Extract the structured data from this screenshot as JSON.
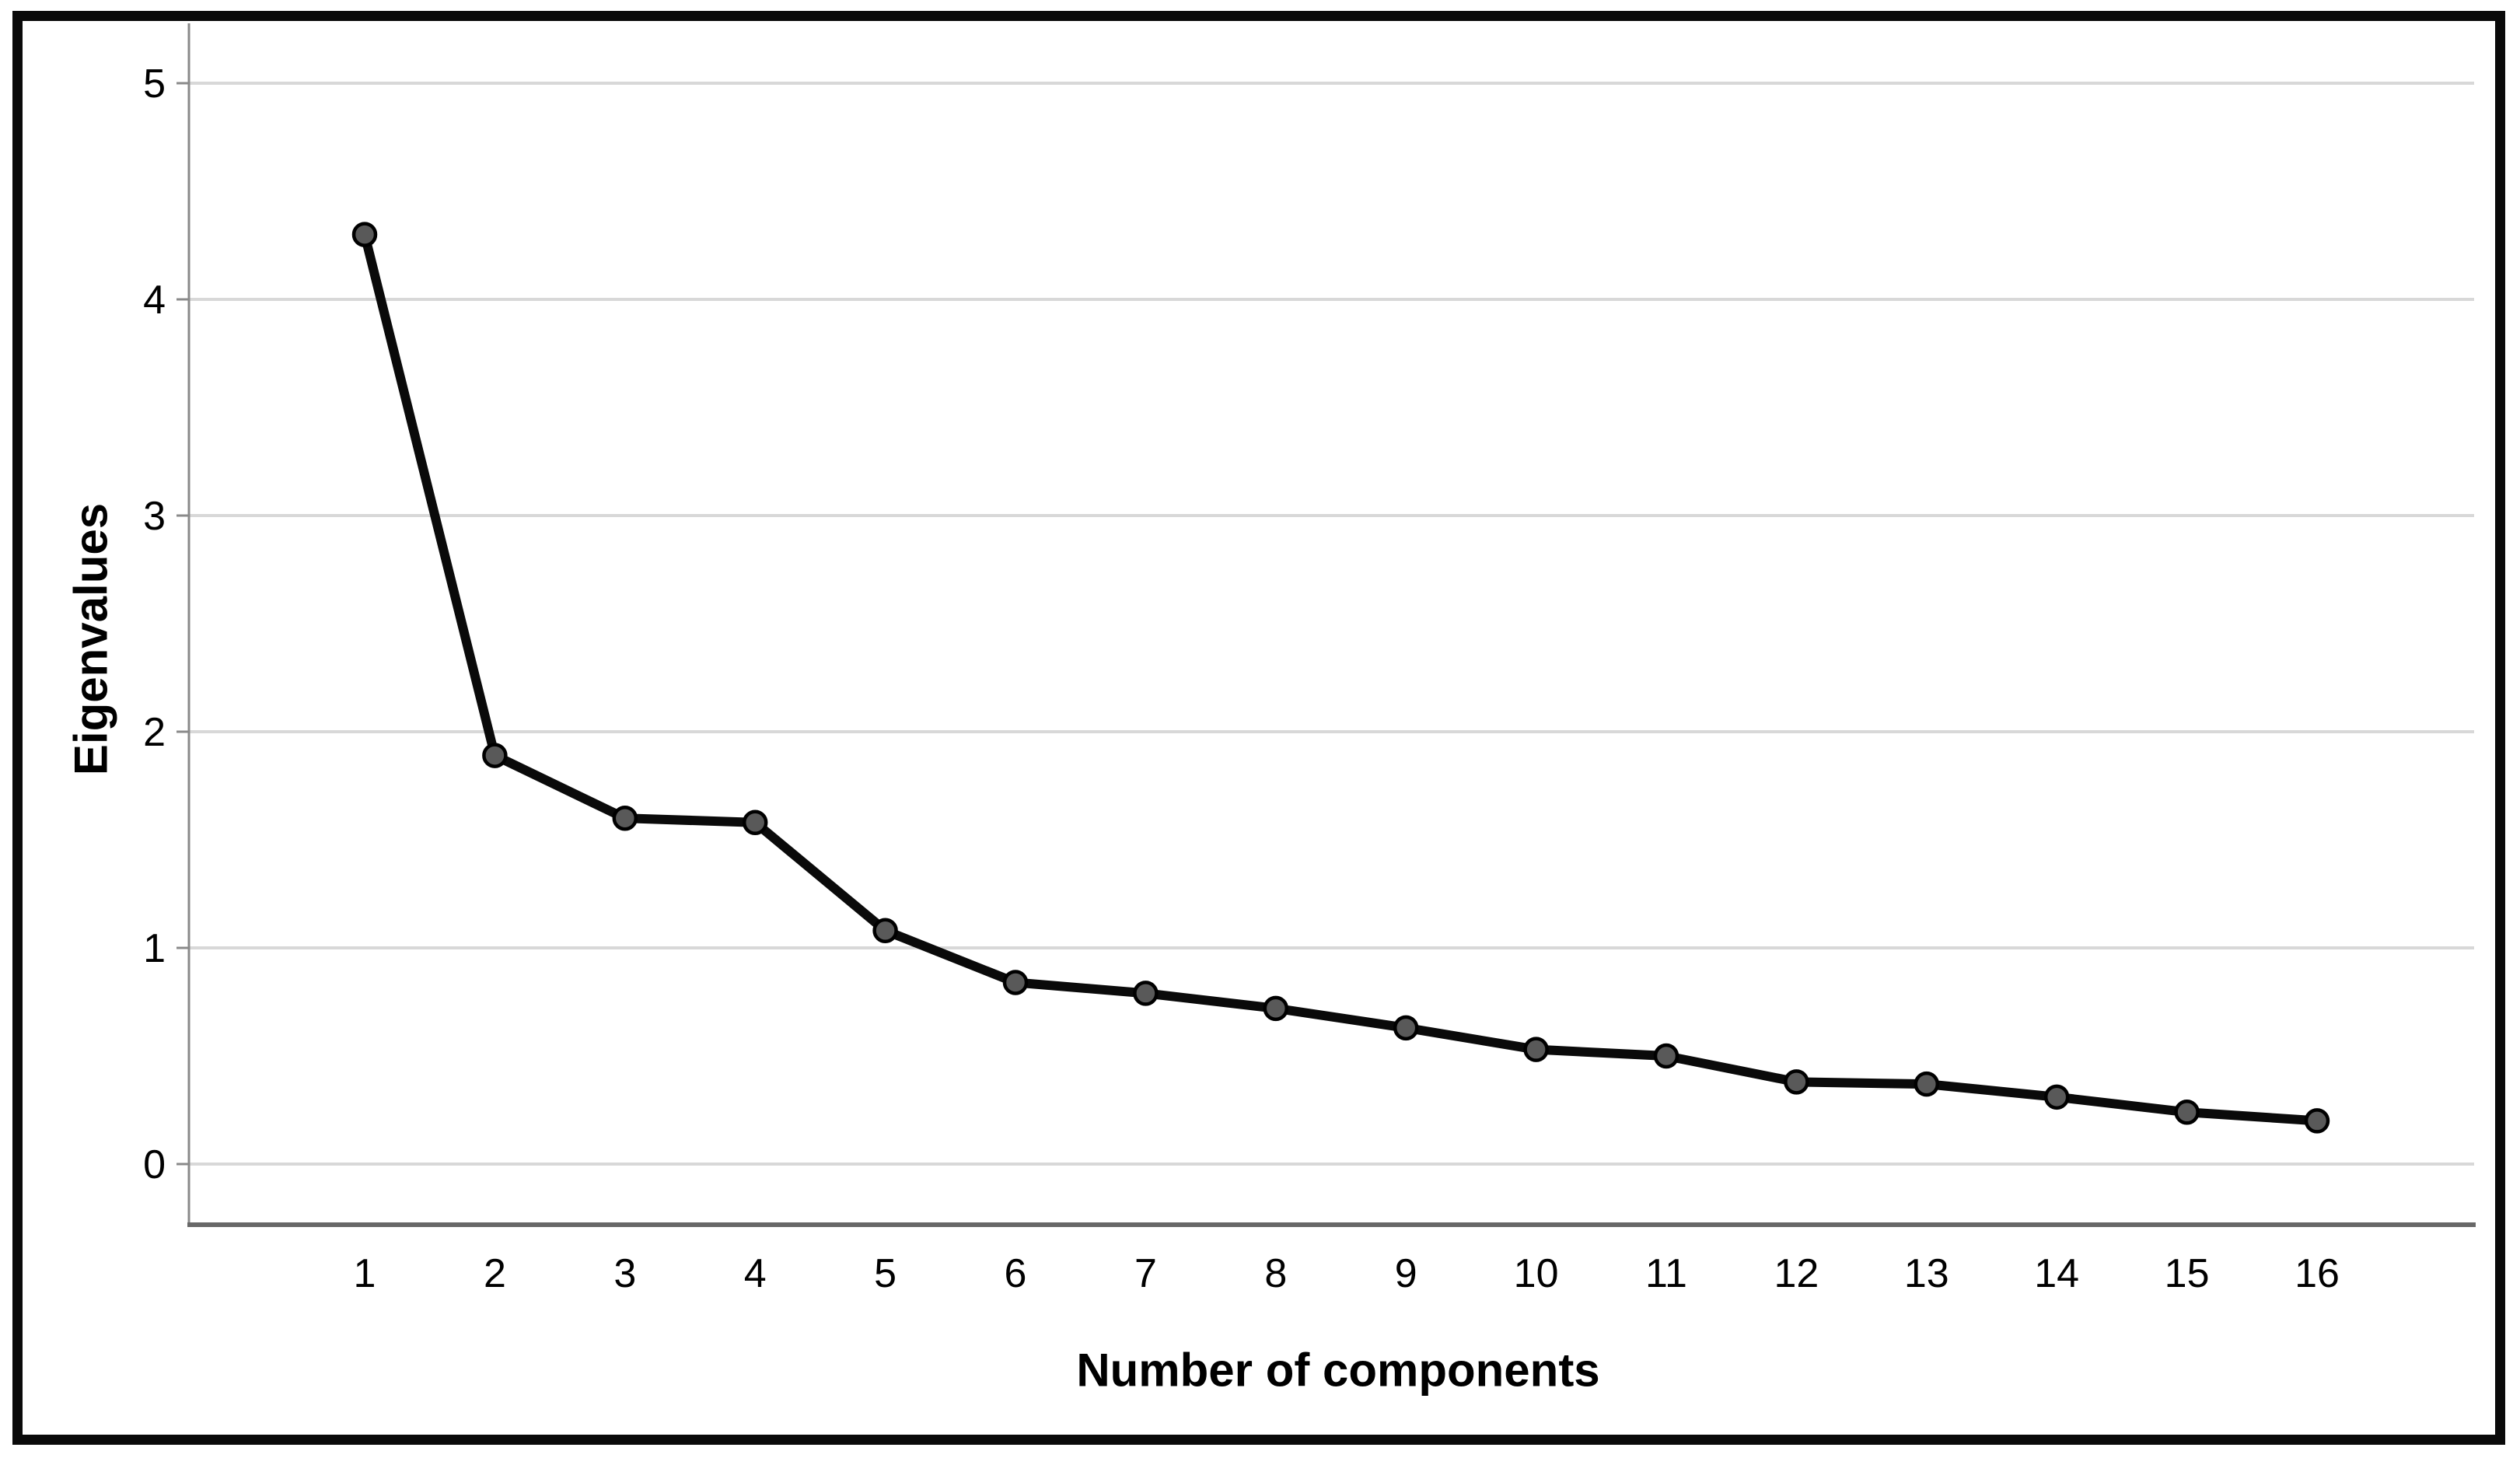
{
  "chart_data": {
    "type": "line",
    "title": "",
    "xlabel": "Number of components",
    "ylabel": "Eigenvalues",
    "x": [
      1,
      2,
      3,
      4,
      5,
      6,
      7,
      8,
      9,
      10,
      11,
      12,
      13,
      14,
      15,
      16
    ],
    "x_tick_labels": [
      "1",
      "2",
      "3",
      "4",
      "5",
      "6",
      "7",
      "8",
      "9",
      "10",
      "11",
      "12",
      "13",
      "14",
      "15",
      "16"
    ],
    "y_ticks": [
      0,
      1,
      2,
      3,
      4,
      5
    ],
    "y_tick_labels": [
      "0",
      "1",
      "2",
      "3",
      "4",
      "5"
    ],
    "ylim": [
      0,
      5
    ],
    "grid": true,
    "legend": "none",
    "marker": "circle",
    "series": [
      {
        "name": "Eigenvalues",
        "values": [
          4.3,
          1.89,
          1.6,
          1.58,
          1.08,
          0.84,
          0.79,
          0.72,
          0.63,
          0.53,
          0.5,
          0.38,
          0.37,
          0.31,
          0.24,
          0.2
        ]
      }
    ],
    "colors": {
      "line": "#0a0a0a",
      "marker_fill": "#595959",
      "marker_stroke": "#000000",
      "grid": "#d8d8d8",
      "axis": "#8a8a8a",
      "baseline": "#686868",
      "text": "#000000",
      "frame": "#0a0a0a",
      "background": "#ffffff"
    }
  }
}
